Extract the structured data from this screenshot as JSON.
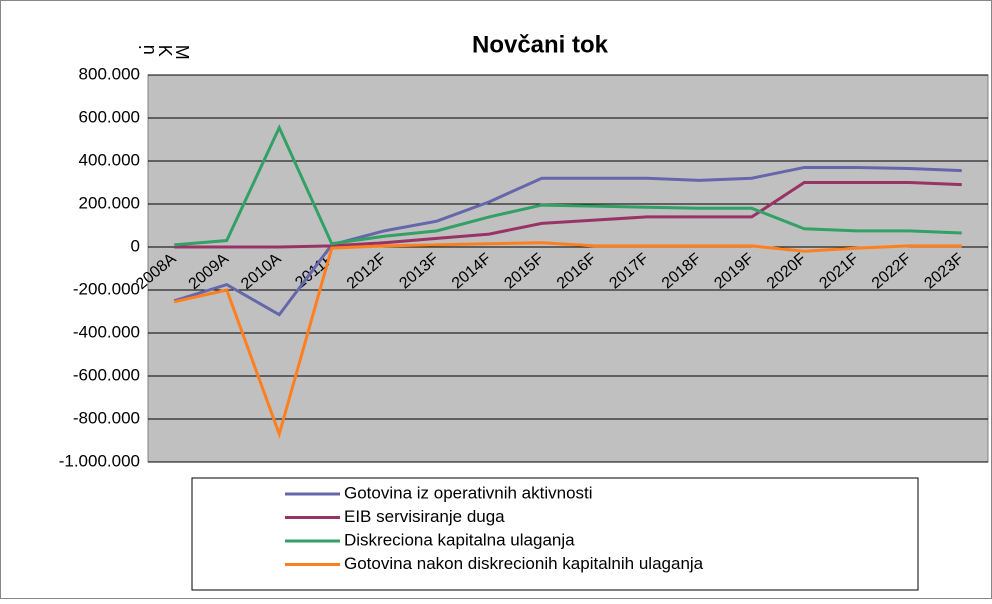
{
  "chart_data": {
    "type": "line",
    "title": "Novčani tok",
    "y_axis_label": "M K n.",
    "categories": [
      "2008A",
      "2009A",
      "2010A",
      "2011F",
      "2012F",
      "2013F",
      "2014F",
      "2015F",
      "2016F",
      "2017F",
      "2018F",
      "2019F",
      "2020F",
      "2021F",
      "2022F",
      "2023F"
    ],
    "series": [
      {
        "name": "Gotovina iz operativnih aktivnosti",
        "color": "#6666aa",
        "values": [
          -250000,
          -175000,
          -315000,
          10000,
          75000,
          120000,
          210000,
          320000,
          320000,
          320000,
          310000,
          320000,
          370000,
          370000,
          365000,
          355000
        ]
      },
      {
        "name": "EIB servisiranje duga",
        "color": "#993366",
        "values": [
          0,
          0,
          0,
          5000,
          20000,
          40000,
          60000,
          110000,
          125000,
          140000,
          140000,
          140000,
          300000,
          300000,
          300000,
          290000
        ]
      },
      {
        "name": "Diskreciona kapitalna ulaganja",
        "color": "#33a066",
        "values": [
          10000,
          30000,
          555000,
          15000,
          50000,
          75000,
          140000,
          195000,
          190000,
          185000,
          180000,
          180000,
          85000,
          75000,
          75000,
          65000
        ]
      },
      {
        "name": "Gotovina nakon diskrecionih kapitalnih ulaganja",
        "color": "#ff7f1e",
        "values": [
          -255000,
          -200000,
          -870000,
          -5000,
          5000,
          10000,
          15000,
          20000,
          5000,
          5000,
          5000,
          5000,
          -20000,
          -5000,
          5000,
          5000
        ]
      }
    ],
    "ylim": [
      -1000000,
      800000
    ],
    "yticks": [
      {
        "value": -1000000,
        "label": "-1.000.000"
      },
      {
        "value": -800000,
        "label": "-800.000"
      },
      {
        "value": -600000,
        "label": "-600.000"
      },
      {
        "value": -400000,
        "label": "-400.000"
      },
      {
        "value": -200000,
        "label": "-200.000"
      },
      0,
      {
        "value": 200000,
        "label": "200.000"
      },
      {
        "value": 400000,
        "label": "400.000"
      },
      {
        "value": 600000,
        "label": "600.000"
      },
      {
        "value": 800000,
        "label": "800.000"
      }
    ],
    "grid": true,
    "legend": "bottom"
  }
}
